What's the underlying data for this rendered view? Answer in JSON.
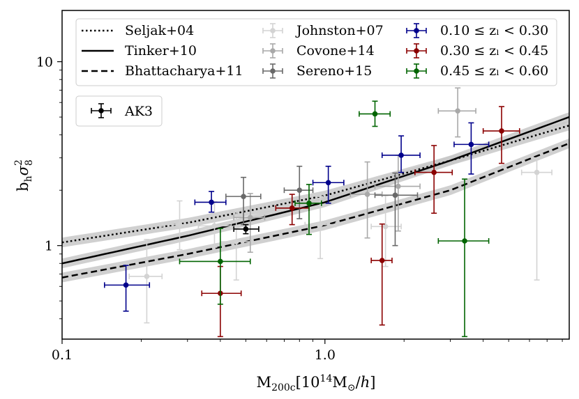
{
  "chart_data": {
    "type": "scatter",
    "title": "",
    "xlabel": "M₂₀₀c[10¹⁴M⊙/h]",
    "xlabel_parts": {
      "main": "M",
      "sub": "200c",
      "bracket_open": "[10",
      "sup": "14",
      "unit": "M",
      "unit_sub": "⊙",
      "tail": "/",
      "h": "h",
      "bracket_close": "]"
    },
    "ylabel": "bₕσ₈²",
    "ylabel_parts": {
      "b": "b",
      "b_sub": "h",
      "sigma": "σ",
      "sig_sup": "2",
      "sig_sub": "8"
    },
    "xscale": "log",
    "yscale": "log",
    "xlim": [
      0.1,
      8.5
    ],
    "ylim": [
      0.31,
      19
    ],
    "x_ticks": [
      {
        "value": 0.1,
        "label": "0.1"
      },
      {
        "value": 1.0,
        "label": "1.0"
      }
    ],
    "y_ticks": [
      {
        "value": 1,
        "label": "1"
      },
      {
        "value": 10,
        "label": "10"
      }
    ],
    "grid": false,
    "legend_position": "top",
    "model_curves": [
      {
        "name": "Seljak+04",
        "style": "dotted",
        "color": "#000000",
        "band": true,
        "x": [
          0.1,
          0.3,
          1.0,
          3.0,
          8.5
        ],
        "y": [
          1.04,
          1.33,
          1.87,
          2.9,
          4.5
        ]
      },
      {
        "name": "Tinker+10",
        "style": "solid",
        "color": "#000000",
        "band": true,
        "x": [
          0.1,
          0.3,
          1.0,
          3.0,
          8.5
        ],
        "y": [
          0.8,
          1.13,
          1.72,
          2.9,
          5.0
        ]
      },
      {
        "name": "Bhattacharya+11",
        "style": "dashed",
        "color": "#000000",
        "band": true,
        "x": [
          0.1,
          0.3,
          1.0,
          3.0,
          8.5
        ],
        "y": [
          0.67,
          0.9,
          1.29,
          2.0,
          3.6
        ]
      }
    ],
    "series": [
      {
        "name": "Johnston+07",
        "color": "#d3d3d3",
        "points": [
          {
            "x": 0.21,
            "y": 0.68,
            "xerr": [
              0.03,
              0.03
            ],
            "yerr": [
              0.3,
              0.4
            ]
          },
          {
            "x": 0.28,
            "y": 1.3,
            "xerr": [
              0.04,
              0.05
            ],
            "yerr": [
              0.35,
              0.45
            ]
          },
          {
            "x": 0.38,
            "y": 1.28,
            "xerr": [
              0.05,
              0.06
            ],
            "yerr": [
              0.3,
              0.45
            ]
          },
          {
            "x": 0.46,
            "y": 1.05,
            "xerr": [
              0.06,
              0.07
            ],
            "yerr": [
              0.4,
              0.5
            ]
          },
          {
            "x": 0.96,
            "y": 1.3,
            "xerr": [
              0.12,
              0.14
            ],
            "yerr": [
              0.45,
              0.55
            ]
          },
          {
            "x": 1.7,
            "y": 1.27,
            "xerr": [
              0.2,
              0.25
            ],
            "yerr": [
              0.5,
              0.6
            ]
          },
          {
            "x": 6.4,
            "y": 2.5,
            "xerr": [
              0.8,
              0.9
            ],
            "yerr": [
              1.85,
              0.5
            ]
          }
        ]
      },
      {
        "name": "Covone+14",
        "color": "#a9a9a9",
        "points": [
          {
            "x": 0.52,
            "y": 1.42,
            "xerr": [
              0.07,
              0.07
            ],
            "yerr": [
              0.5,
              0.5
            ]
          },
          {
            "x": 1.45,
            "y": 1.9,
            "xerr": [
              0.2,
              0.2
            ],
            "yerr": [
              0.8,
              0.95
            ]
          },
          {
            "x": 1.9,
            "y": 2.1,
            "xerr": [
              0.35,
              0.4
            ],
            "yerr": [
              0.9,
              1.0
            ]
          },
          {
            "x": 3.2,
            "y": 5.4,
            "xerr": [
              0.5,
              0.55
            ],
            "yerr": [
              1.5,
              1.8
            ]
          }
        ]
      },
      {
        "name": "Sereno+15",
        "color": "#696969",
        "points": [
          {
            "x": 0.49,
            "y": 1.85,
            "xerr": [
              0.07,
              0.08
            ],
            "yerr": [
              0.55,
              0.5
            ]
          },
          {
            "x": 0.8,
            "y": 2.0,
            "xerr": [
              0.1,
              0.1
            ],
            "yerr": [
              0.6,
              0.7
            ]
          },
          {
            "x": 1.85,
            "y": 1.88,
            "xerr": [
              0.3,
              0.4
            ],
            "yerr": [
              0.88,
              0.6
            ]
          }
        ]
      },
      {
        "name": "0.10 ≤ zₗ < 0.30",
        "color": "#00008b",
        "points": [
          {
            "x": 0.175,
            "y": 0.61,
            "xerr": [
              0.03,
              0.04
            ],
            "yerr": [
              0.17,
              0.17
            ]
          },
          {
            "x": 0.37,
            "y": 1.72,
            "xerr": [
              0.05,
              0.05
            ],
            "yerr": [
              0.2,
              0.25
            ]
          },
          {
            "x": 1.03,
            "y": 2.2,
            "xerr": [
              0.13,
              0.15
            ],
            "yerr": [
              0.5,
              0.5
            ]
          },
          {
            "x": 1.95,
            "y": 3.1,
            "xerr": [
              0.3,
              0.35
            ],
            "yerr": [
              0.6,
              0.85
            ]
          },
          {
            "x": 3.6,
            "y": 3.55,
            "xerr": [
              0.5,
              0.6
            ],
            "yerr": [
              1.1,
              1.1
            ]
          }
        ]
      },
      {
        "name": "0.30 ≤ zₗ < 0.45",
        "color": "#8b0000",
        "points": [
          {
            "x": 0.4,
            "y": 0.55,
            "xerr": [
              0.06,
              0.08
            ],
            "yerr": [
              0.23,
              0.22
            ]
          },
          {
            "x": 0.75,
            "y": 1.6,
            "xerr": [
              0.1,
              0.12
            ],
            "yerr": [
              0.3,
              0.3
            ]
          },
          {
            "x": 1.65,
            "y": 0.83,
            "xerr": [
              0.15,
              0.15
            ],
            "yerr": [
              0.46,
              0.48
            ]
          },
          {
            "x": 2.6,
            "y": 2.5,
            "xerr": [
              0.4,
              0.45
            ],
            "yerr": [
              1.0,
              1.0
            ]
          },
          {
            "x": 4.7,
            "y": 4.2,
            "xerr": [
              0.7,
              0.8
            ],
            "yerr": [
              1.4,
              1.5
            ]
          }
        ]
      },
      {
        "name": "0.45 ≤ zₗ < 0.60",
        "color": "#006400",
        "points": [
          {
            "x": 0.4,
            "y": 0.82,
            "xerr": [
              0.12,
              0.12
            ],
            "yerr": [
              0.34,
              0.42
            ]
          },
          {
            "x": 0.87,
            "y": 1.7,
            "xerr": [
              0.1,
              0.1
            ],
            "yerr": [
              0.55,
              0.45
            ]
          },
          {
            "x": 1.55,
            "y": 5.2,
            "xerr": [
              0.2,
              0.22
            ],
            "yerr": [
              0.75,
              0.9
            ]
          },
          {
            "x": 3.4,
            "y": 1.06,
            "xerr": [
              0.7,
              0.8
            ],
            "yerr": [
              0.74,
              1.24
            ]
          }
        ]
      },
      {
        "name": "AK3",
        "color": "#000000",
        "points": [
          {
            "x": 0.5,
            "y": 1.23,
            "xerr": [
              0.05,
              0.06
            ],
            "yerr": [
              0.07,
              0.07
            ]
          }
        ]
      }
    ],
    "legend_entries": [
      "Seljak+04",
      "Tinker+10",
      "Bhattacharya+11",
      "Johnston+07",
      "Covone+14",
      "Sereno+15",
      "0.10 ≤ zₗ < 0.30",
      "0.30 ≤ zₗ < 0.45",
      "0.45 ≤ zₗ < 0.60",
      "AK3"
    ]
  }
}
